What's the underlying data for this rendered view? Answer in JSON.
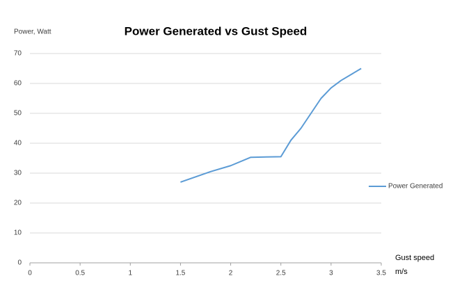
{
  "chart_data": {
    "type": "line",
    "title": "Power Generated vs Gust Speed",
    "y_label": "Power, Watt",
    "x_label": "Gust speed m/s",
    "x": [
      1.5,
      1.8,
      2.0,
      2.2,
      2.5,
      2.6,
      2.7,
      2.9,
      3.0,
      3.1,
      3.3
    ],
    "series": [
      {
        "name": "Power Generated",
        "color": "#5b9bd5",
        "values": [
          27,
          30.5,
          32.5,
          35.3,
          35.5,
          41,
          45,
          55,
          58.5,
          61,
          65
        ]
      }
    ],
    "xlim": [
      0,
      3.5
    ],
    "xticks": [
      0,
      0.5,
      1,
      1.5,
      2,
      2.5,
      3,
      3.5
    ],
    "ylim": [
      0,
      70
    ],
    "yticks": [
      0,
      10,
      20,
      30,
      40,
      50,
      60,
      70
    ],
    "grid": true,
    "legend": "right"
  }
}
